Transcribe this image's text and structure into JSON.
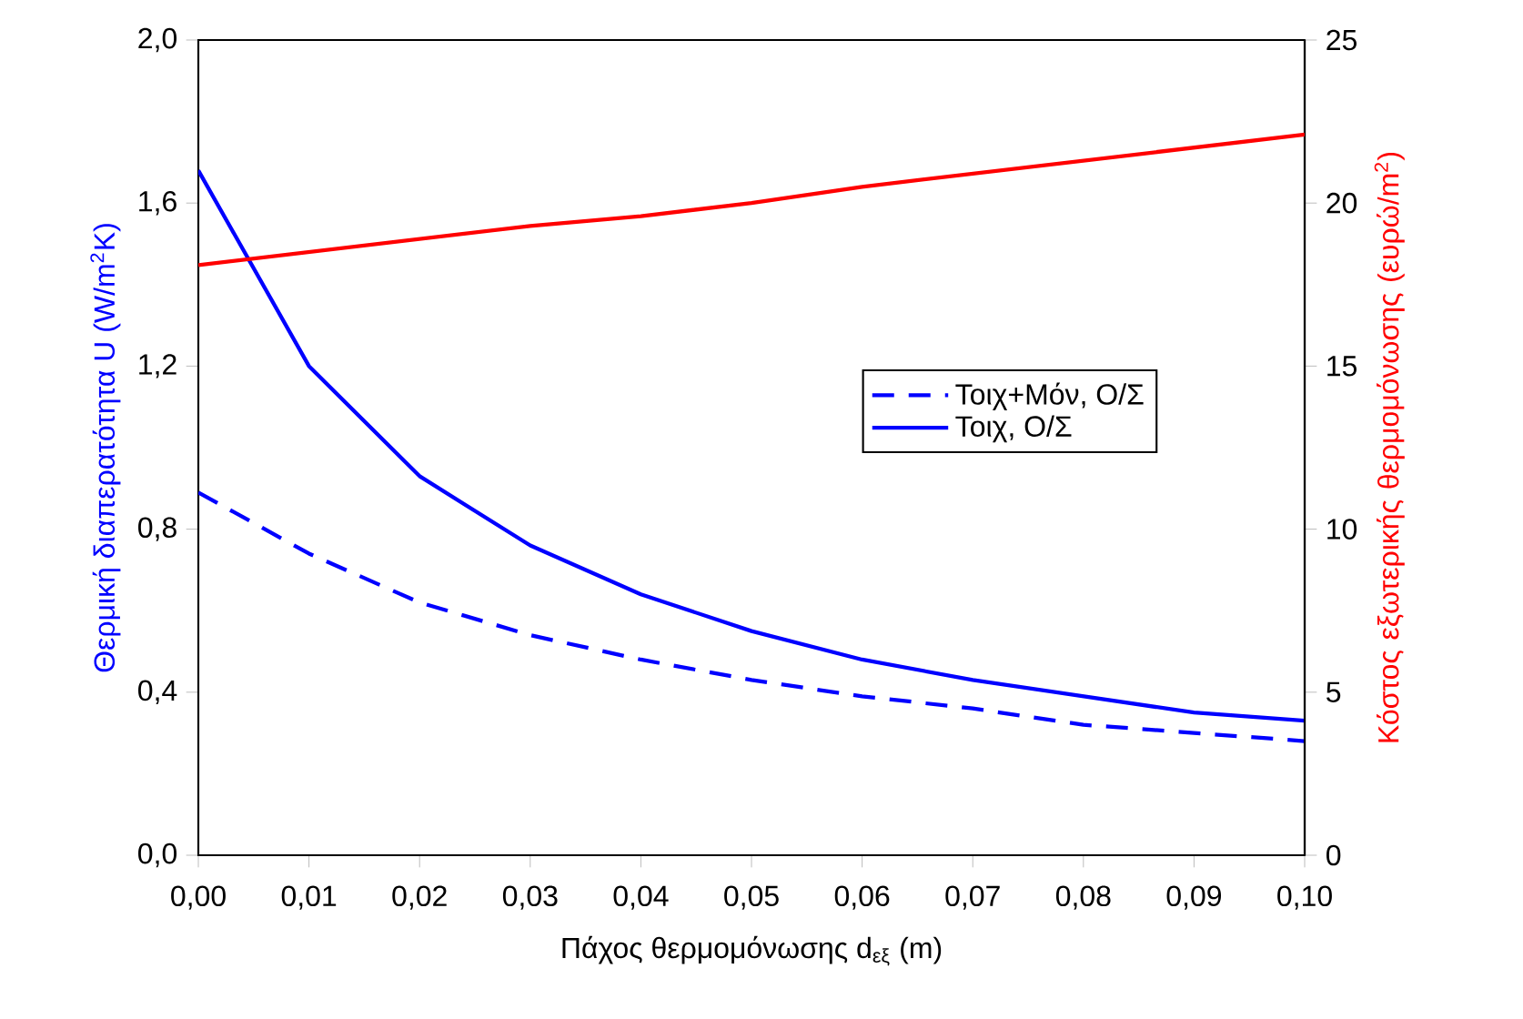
{
  "chart_data": {
    "type": "line",
    "xlabel": "Πάχος θερμομόνωσης d$_{εξ}$ (m)",
    "ylabel": "Θερμική διαπερατότητα U (W/m$^{2}$K)",
    "y2label": "Κόστος εξωτερικής θερμομόνωσης (ευρώ/m$^{2}$)",
    "x": [
      0,
      0.01,
      0.02,
      0.03,
      0.04,
      0.05,
      0.06,
      0.07,
      0.08,
      0.09,
      0.1
    ],
    "xlim": [
      0,
      0.1
    ],
    "xticks": [
      {
        "value": 0,
        "label": "0,00"
      },
      {
        "value": 0.01,
        "label": "0,01"
      },
      {
        "value": 0.02,
        "label": "0,02"
      },
      {
        "value": 0.03,
        "label": "0,03"
      },
      {
        "value": 0.04,
        "label": "0,04"
      },
      {
        "value": 0.05,
        "label": "0,05"
      },
      {
        "value": 0.06,
        "label": "0,06"
      },
      {
        "value": 0.07,
        "label": "0,07"
      },
      {
        "value": 0.08,
        "label": "0,08"
      },
      {
        "value": 0.09,
        "label": "0,09"
      },
      {
        "value": 0.1,
        "label": "0,10"
      }
    ],
    "ylim": [
      0,
      2
    ],
    "yticks": [
      {
        "value": 0,
        "label": "0,0"
      },
      {
        "value": 0.4,
        "label": "0,4"
      },
      {
        "value": 0.8,
        "label": "0,8"
      },
      {
        "value": 1.2,
        "label": "1,2"
      },
      {
        "value": 1.6,
        "label": "1,6"
      },
      {
        "value": 2,
        "label": "2,0"
      }
    ],
    "y2lim": [
      0,
      25
    ],
    "y2ticks": [
      0,
      5,
      10,
      15,
      20,
      25
    ],
    "legend": "right",
    "grid": false,
    "series": [
      {
        "name": "Τοιχ+Μόν, Ο/Σ",
        "color": "#0000ff",
        "line_style": "dashed",
        "values": [
          0.89,
          0.74,
          0.62,
          0.54,
          0.48,
          0.43,
          0.39,
          0.36,
          0.32,
          0.3,
          0.28
        ]
      },
      {
        "name": "Τοιχ, Ο/Σ",
        "color": "#0000ff",
        "line_style": "solid",
        "values": [
          1.68,
          1.2,
          0.93,
          0.76,
          0.64,
          0.55,
          0.48,
          0.43,
          0.39,
          0.35,
          0.33
        ]
      },
      {
        "color": "#ff0000",
        "line_style": "solid",
        "axis": "y2",
        "values": [
          18.1,
          18.5,
          18.9,
          19.3,
          19.6,
          20.0,
          20.5,
          20.9,
          21.3,
          21.7,
          22.1
        ]
      }
    ]
  }
}
